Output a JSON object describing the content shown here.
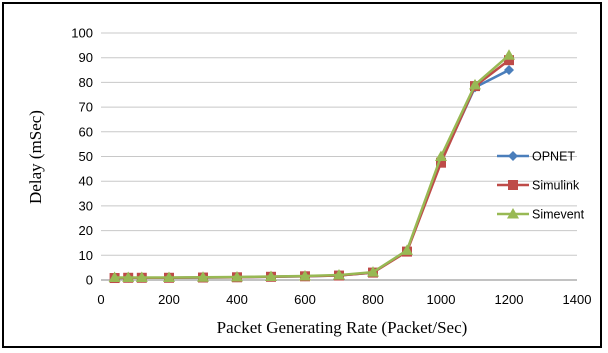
{
  "chart_data": {
    "type": "line",
    "title": "",
    "xlabel": "Packet Generating Rate (Packet/Sec)",
    "ylabel": "Delay (mSec)",
    "xlim": [
      0,
      1400
    ],
    "ylim": [
      0,
      100
    ],
    "xticks": [
      0,
      200,
      400,
      600,
      800,
      1000,
      1200,
      1400
    ],
    "yticks": [
      0,
      10,
      20,
      30,
      40,
      50,
      60,
      70,
      80,
      90,
      100
    ],
    "grid": "horizontal",
    "legend": "right",
    "x": [
      40,
      80,
      120,
      200,
      300,
      400,
      500,
      600,
      700,
      800,
      900,
      1000,
      1100,
      1200
    ],
    "series": [
      {
        "name": "OPNET",
        "color": "#4a7ebb",
        "marker": "diamond",
        "values": [
          0.8,
          0.9,
          0.9,
          0.9,
          1.0,
          1.1,
          1.3,
          1.5,
          1.8,
          3.0,
          12,
          48,
          78,
          85
        ]
      },
      {
        "name": "Simulink",
        "color": "#be4b48",
        "marker": "square",
        "values": [
          0.8,
          0.9,
          0.9,
          0.9,
          1.0,
          1.1,
          1.3,
          1.5,
          1.8,
          3.0,
          11.5,
          47.5,
          78.5,
          89
        ]
      },
      {
        "name": "Simevent",
        "color": "#98b954",
        "marker": "triangle",
        "values": [
          1.0,
          1.0,
          1.0,
          1.0,
          1.1,
          1.2,
          1.4,
          1.6,
          2.0,
          3.2,
          12,
          50,
          79,
          91
        ]
      }
    ]
  }
}
